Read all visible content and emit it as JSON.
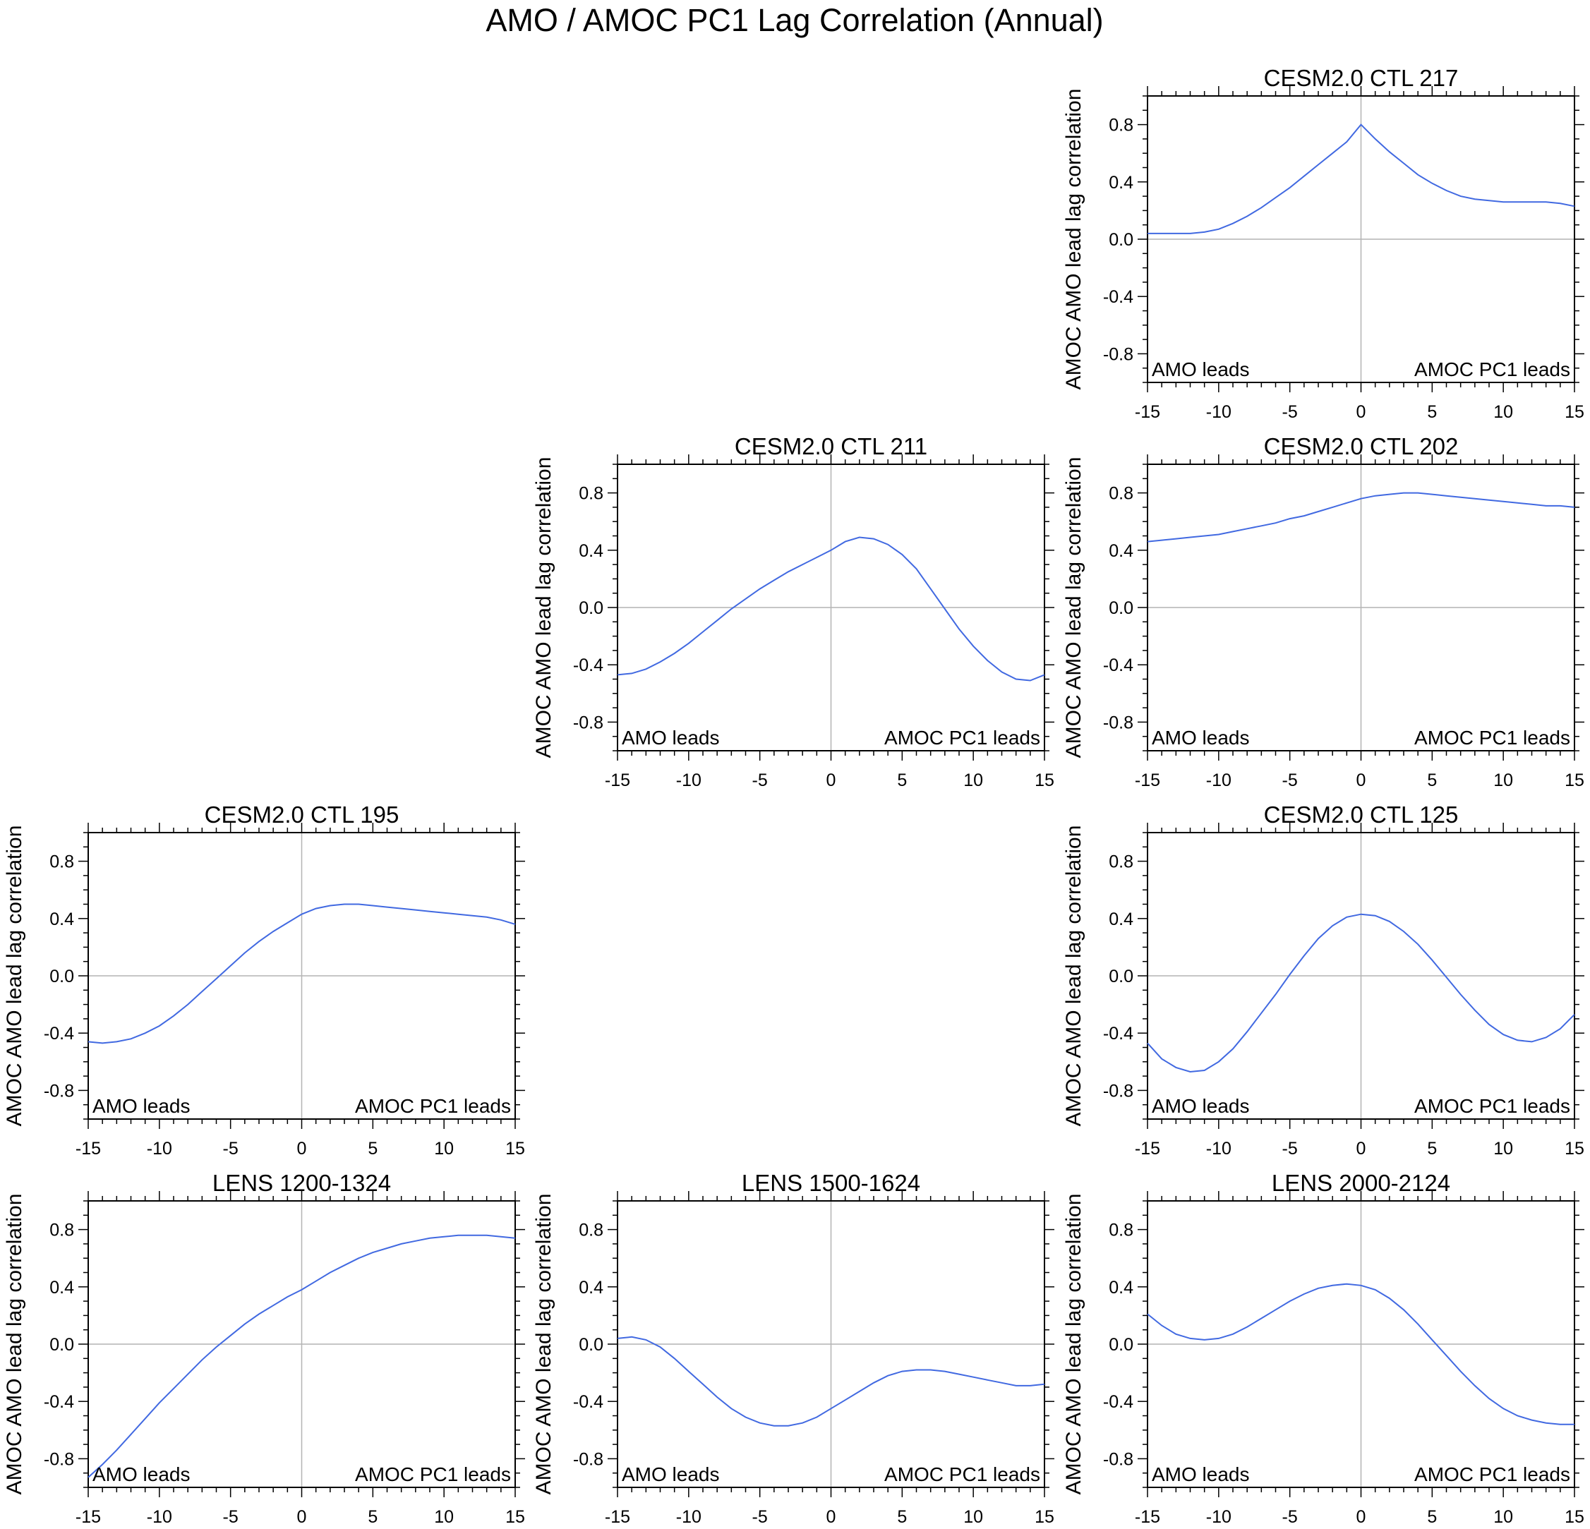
{
  "figure": {
    "title": "AMO / AMOC PC1 Lag Correlation (Annual)",
    "line_color": "#4169e1",
    "zero_line_color": "#b4b4b4"
  },
  "chart_data": [
    {
      "type": "line",
      "grid_row": 1,
      "grid_col": 3,
      "title": "CESM2.0 CTL 217",
      "ylabel": "AMOC AMO lead lag correlation",
      "xlabel": "",
      "xlim": [
        -15,
        15
      ],
      "ylim": [
        -1,
        1
      ],
      "xticks": [
        -15,
        -10,
        -5,
        0,
        5,
        10,
        15
      ],
      "xtick_labels": [
        "-15",
        "-10",
        "-5",
        "0",
        "5",
        "10",
        "15"
      ],
      "yticks": [
        0.8,
        0.4,
        0.0,
        -0.4,
        -0.8
      ],
      "ytick_labels": [
        "0.8",
        "0.4",
        "0.0",
        "-0.4",
        "-0.8"
      ],
      "annotations": {
        "left": "AMO leads",
        "right": "AMOC PC1 leads"
      },
      "x": [
        -15,
        -14,
        -13,
        -12,
        -11,
        -10,
        -9,
        -8,
        -7,
        -6,
        -5,
        -4,
        -3,
        -2,
        -1,
        0,
        1,
        2,
        3,
        4,
        5,
        6,
        7,
        8,
        9,
        10,
        11,
        12,
        13,
        14,
        15
      ],
      "y": [
        0.04,
        0.04,
        0.04,
        0.04,
        0.05,
        0.07,
        0.11,
        0.16,
        0.22,
        0.29,
        0.36,
        0.44,
        0.52,
        0.6,
        0.68,
        0.8,
        0.7,
        0.61,
        0.53,
        0.45,
        0.39,
        0.34,
        0.3,
        0.28,
        0.27,
        0.26,
        0.26,
        0.26,
        0.26,
        0.25,
        0.23
      ]
    },
    {
      "type": "line",
      "grid_row": 2,
      "grid_col": 2,
      "title": "CESM2.0 CTL 211",
      "ylabel": "AMOC AMO lead lag correlation",
      "xlabel": "",
      "xlim": [
        -15,
        15
      ],
      "ylim": [
        -1,
        1
      ],
      "xticks": [
        -15,
        -10,
        -5,
        0,
        5,
        10,
        15
      ],
      "xtick_labels": [
        "-15",
        "-10",
        "-5",
        "0",
        "5",
        "10",
        "15"
      ],
      "yticks": [
        0.8,
        0.4,
        0.0,
        -0.4,
        -0.8
      ],
      "ytick_labels": [
        "0.8",
        "0.4",
        "0.0",
        "-0.4",
        "-0.8"
      ],
      "annotations": {
        "left": "AMO leads",
        "right": "AMOC PC1 leads"
      },
      "x": [
        -15,
        -14,
        -13,
        -12,
        -11,
        -10,
        -9,
        -8,
        -7,
        -6,
        -5,
        -4,
        -3,
        -2,
        -1,
        0,
        1,
        2,
        3,
        4,
        5,
        6,
        7,
        8,
        9,
        10,
        11,
        12,
        13,
        14,
        15
      ],
      "y": [
        -0.47,
        -0.46,
        -0.43,
        -0.38,
        -0.32,
        -0.25,
        -0.17,
        -0.09,
        -0.01,
        0.06,
        0.13,
        0.19,
        0.25,
        0.3,
        0.35,
        0.4,
        0.46,
        0.49,
        0.48,
        0.44,
        0.37,
        0.27,
        0.13,
        -0.01,
        -0.15,
        -0.27,
        -0.37,
        -0.45,
        -0.5,
        -0.51,
        -0.47
      ]
    },
    {
      "type": "line",
      "grid_row": 2,
      "grid_col": 3,
      "title": "CESM2.0 CTL 202",
      "ylabel": "AMOC AMO lead lag correlation",
      "xlabel": "",
      "xlim": [
        -15,
        15
      ],
      "ylim": [
        -1,
        1
      ],
      "xticks": [
        -15,
        -10,
        -5,
        0,
        5,
        10,
        15
      ],
      "xtick_labels": [
        "-15",
        "-10",
        "-5",
        "0",
        "5",
        "10",
        "15"
      ],
      "yticks": [
        0.8,
        0.4,
        0.0,
        -0.4,
        -0.8
      ],
      "ytick_labels": [
        "0.8",
        "0.4",
        "0.0",
        "-0.4",
        "-0.8"
      ],
      "annotations": {
        "left": "AMO leads",
        "right": "AMOC PC1 leads"
      },
      "x": [
        -15,
        -14,
        -13,
        -12,
        -11,
        -10,
        -9,
        -8,
        -7,
        -6,
        -5,
        -4,
        -3,
        -2,
        -1,
        0,
        1,
        2,
        3,
        4,
        5,
        6,
        7,
        8,
        9,
        10,
        11,
        12,
        13,
        14,
        15
      ],
      "y": [
        0.46,
        0.47,
        0.48,
        0.49,
        0.5,
        0.51,
        0.53,
        0.55,
        0.57,
        0.59,
        0.62,
        0.64,
        0.67,
        0.7,
        0.73,
        0.76,
        0.78,
        0.79,
        0.8,
        0.8,
        0.79,
        0.78,
        0.77,
        0.76,
        0.75,
        0.74,
        0.73,
        0.72,
        0.71,
        0.71,
        0.7
      ]
    },
    {
      "type": "line",
      "grid_row": 3,
      "grid_col": 1,
      "title": "CESM2.0 CTL 195",
      "ylabel": "AMOC AMO lead lag correlation",
      "xlabel": "",
      "xlim": [
        -15,
        15
      ],
      "ylim": [
        -1,
        1
      ],
      "xticks": [
        -15,
        -10,
        -5,
        0,
        5,
        10,
        15
      ],
      "xtick_labels": [
        "-15",
        "-10",
        "-5",
        "0",
        "5",
        "10",
        "15"
      ],
      "yticks": [
        0.8,
        0.4,
        0.0,
        -0.4,
        -0.8
      ],
      "ytick_labels": [
        "0.8",
        "0.4",
        "0.0",
        "-0.4",
        "-0.8"
      ],
      "annotations": {
        "left": "AMO leads",
        "right": "AMOC PC1 leads"
      },
      "x": [
        -15,
        -14,
        -13,
        -12,
        -11,
        -10,
        -9,
        -8,
        -7,
        -6,
        -5,
        -4,
        -3,
        -2,
        -1,
        0,
        1,
        2,
        3,
        4,
        5,
        6,
        7,
        8,
        9,
        10,
        11,
        12,
        13,
        14,
        15
      ],
      "y": [
        -0.46,
        -0.47,
        -0.46,
        -0.44,
        -0.4,
        -0.35,
        -0.28,
        -0.2,
        -0.11,
        -0.02,
        0.07,
        0.16,
        0.24,
        0.31,
        0.37,
        0.43,
        0.47,
        0.49,
        0.5,
        0.5,
        0.49,
        0.48,
        0.47,
        0.46,
        0.45,
        0.44,
        0.43,
        0.42,
        0.41,
        0.39,
        0.36
      ]
    },
    {
      "type": "line",
      "grid_row": 3,
      "grid_col": 3,
      "title": "CESM2.0 CTL 125",
      "ylabel": "AMOC AMO lead lag correlation",
      "xlabel": "",
      "xlim": [
        -15,
        15
      ],
      "ylim": [
        -1,
        1
      ],
      "xticks": [
        -15,
        -10,
        -5,
        0,
        5,
        10,
        15
      ],
      "xtick_labels": [
        "-15",
        "-10",
        "-5",
        "0",
        "5",
        "10",
        "15"
      ],
      "yticks": [
        0.8,
        0.4,
        0.0,
        -0.4,
        -0.8
      ],
      "ytick_labels": [
        "0.8",
        "0.4",
        "0.0",
        "-0.4",
        "-0.8"
      ],
      "annotations": {
        "left": "AMO leads",
        "right": "AMOC PC1 leads"
      },
      "x": [
        -15,
        -14,
        -13,
        -12,
        -11,
        -10,
        -9,
        -8,
        -7,
        -6,
        -5,
        -4,
        -3,
        -2,
        -1,
        0,
        1,
        2,
        3,
        4,
        5,
        6,
        7,
        8,
        9,
        10,
        11,
        12,
        13,
        14,
        15
      ],
      "y": [
        -0.47,
        -0.58,
        -0.64,
        -0.67,
        -0.66,
        -0.6,
        -0.51,
        -0.39,
        -0.26,
        -0.13,
        0.01,
        0.14,
        0.26,
        0.35,
        0.41,
        0.43,
        0.42,
        0.38,
        0.31,
        0.22,
        0.11,
        -0.01,
        -0.13,
        -0.24,
        -0.34,
        -0.41,
        -0.45,
        -0.46,
        -0.43,
        -0.37,
        -0.27
      ]
    },
    {
      "type": "line",
      "grid_row": 4,
      "grid_col": 1,
      "title": "LENS 1200-1324",
      "ylabel": "AMOC AMO lead lag correlation",
      "xlabel": "",
      "xlim": [
        -15,
        15
      ],
      "ylim": [
        -1,
        1
      ],
      "xticks": [
        -15,
        -10,
        -5,
        0,
        5,
        10,
        15
      ],
      "xtick_labels": [
        "-15",
        "-10",
        "-5",
        "0",
        "5",
        "10",
        "15"
      ],
      "yticks": [
        0.8,
        0.4,
        0.0,
        -0.4,
        -0.8
      ],
      "ytick_labels": [
        "0.8",
        "0.4",
        "0.0",
        "-0.4",
        "-0.8"
      ],
      "annotations": {
        "left": "AMO leads",
        "right": "AMOC PC1 leads"
      },
      "x": [
        -15,
        -14,
        -13,
        -12,
        -11,
        -10,
        -9,
        -8,
        -7,
        -6,
        -5,
        -4,
        -3,
        -2,
        -1,
        0,
        1,
        2,
        3,
        4,
        5,
        6,
        7,
        8,
        9,
        10,
        11,
        12,
        13,
        14,
        15
      ],
      "y": [
        -0.93,
        -0.84,
        -0.74,
        -0.63,
        -0.52,
        -0.41,
        -0.31,
        -0.21,
        -0.11,
        -0.02,
        0.06,
        0.14,
        0.21,
        0.27,
        0.33,
        0.38,
        0.44,
        0.5,
        0.55,
        0.6,
        0.64,
        0.67,
        0.7,
        0.72,
        0.74,
        0.75,
        0.76,
        0.76,
        0.76,
        0.75,
        0.74
      ]
    },
    {
      "type": "line",
      "grid_row": 4,
      "grid_col": 2,
      "title": "LENS 1500-1624",
      "ylabel": "AMOC AMO lead lag correlation",
      "xlabel": "",
      "xlim": [
        -15,
        15
      ],
      "ylim": [
        -1,
        1
      ],
      "xticks": [
        -15,
        -10,
        -5,
        0,
        5,
        10,
        15
      ],
      "xtick_labels": [
        "-15",
        "-10",
        "-5",
        "0",
        "5",
        "10",
        "15"
      ],
      "yticks": [
        0.8,
        0.4,
        0.0,
        -0.4,
        -0.8
      ],
      "ytick_labels": [
        "0.8",
        "0.4",
        "0.0",
        "-0.4",
        "-0.8"
      ],
      "annotations": {
        "left": "AMO leads",
        "right": "AMOC PC1 leads"
      },
      "x": [
        -15,
        -14,
        -13,
        -12,
        -11,
        -10,
        -9,
        -8,
        -7,
        -6,
        -5,
        -4,
        -3,
        -2,
        -1,
        0,
        1,
        2,
        3,
        4,
        5,
        6,
        7,
        8,
        9,
        10,
        11,
        12,
        13,
        14,
        15
      ],
      "y": [
        0.04,
        0.05,
        0.03,
        -0.02,
        -0.1,
        -0.19,
        -0.28,
        -0.37,
        -0.45,
        -0.51,
        -0.55,
        -0.57,
        -0.57,
        -0.55,
        -0.51,
        -0.45,
        -0.39,
        -0.33,
        -0.27,
        -0.22,
        -0.19,
        -0.18,
        -0.18,
        -0.19,
        -0.21,
        -0.23,
        -0.25,
        -0.27,
        -0.29,
        -0.29,
        -0.28
      ]
    },
    {
      "type": "line",
      "grid_row": 4,
      "grid_col": 3,
      "title": "LENS 2000-2124",
      "ylabel": "AMOC AMO lead lag correlation",
      "xlabel": "",
      "xlim": [
        -15,
        15
      ],
      "ylim": [
        -1,
        1
      ],
      "xticks": [
        -15,
        -10,
        -5,
        0,
        5,
        10,
        15
      ],
      "xtick_labels": [
        "-15",
        "-10",
        "-5",
        "0",
        "5",
        "10",
        "15"
      ],
      "yticks": [
        0.8,
        0.4,
        0.0,
        -0.4,
        -0.8
      ],
      "ytick_labels": [
        "0.8",
        "0.4",
        "0.0",
        "-0.4",
        "-0.8"
      ],
      "annotations": {
        "left": "AMO leads",
        "right": "AMOC PC1 leads"
      },
      "x": [
        -15,
        -14,
        -13,
        -12,
        -11,
        -10,
        -9,
        -8,
        -7,
        -6,
        -5,
        -4,
        -3,
        -2,
        -1,
        0,
        1,
        2,
        3,
        4,
        5,
        6,
        7,
        8,
        9,
        10,
        11,
        12,
        13,
        14,
        15
      ],
      "y": [
        0.21,
        0.13,
        0.07,
        0.04,
        0.03,
        0.04,
        0.07,
        0.12,
        0.18,
        0.24,
        0.3,
        0.35,
        0.39,
        0.41,
        0.42,
        0.41,
        0.38,
        0.32,
        0.24,
        0.14,
        0.03,
        -0.08,
        -0.19,
        -0.29,
        -0.38,
        -0.45,
        -0.5,
        -0.53,
        -0.55,
        -0.56,
        -0.56
      ]
    }
  ]
}
